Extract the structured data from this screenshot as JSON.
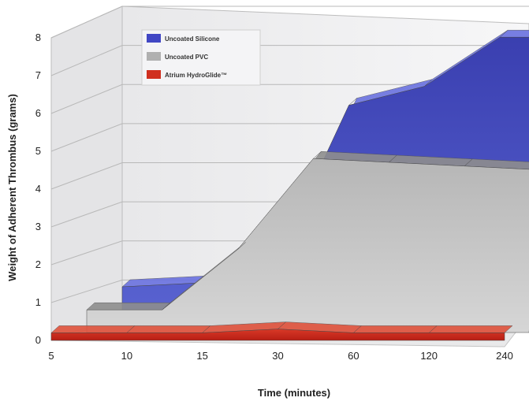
{
  "chart_data": {
    "type": "area",
    "style": "3d",
    "title": "",
    "xlabel": "Time (minutes)",
    "ylabel": "Weight of Adherent Thrombus (grams)",
    "categories": [
      "5",
      "10",
      "15",
      "30",
      "60",
      "120",
      "240"
    ],
    "y_ticks": [
      "0",
      "1",
      "2",
      "3",
      "4",
      "5",
      "6",
      "7",
      "8"
    ],
    "ylim": [
      0,
      8
    ],
    "grid": true,
    "legend_position": "top-left",
    "series": [
      {
        "name": "Uncoated Silicone",
        "color": "#3b3fae",
        "values": [
          1.0,
          1.1,
          1.5,
          5.8,
          6.3,
          7.6,
          7.6
        ]
      },
      {
        "name": "Uncoated PVC",
        "color": "#b9b9b9",
        "values": [
          0.6,
          0.6,
          2.2,
          4.6,
          4.5,
          4.4,
          4.3
        ]
      },
      {
        "name": "Atrium HydroGlide™",
        "color": "#c8281c",
        "values": [
          0.2,
          0.2,
          0.2,
          0.3,
          0.2,
          0.2,
          0.2
        ]
      }
    ]
  }
}
